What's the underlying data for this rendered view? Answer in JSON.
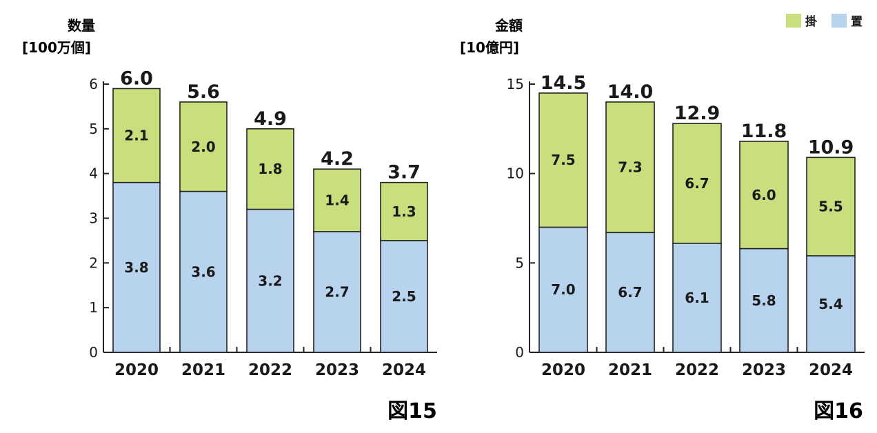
{
  "legend": {
    "items": [
      {
        "label": "掛",
        "color": "#c9df7e"
      },
      {
        "label": "置",
        "color": "#b7d3ee"
      }
    ]
  },
  "chart_data": [
    {
      "type": "bar",
      "stacked": true,
      "figure_label": "図15",
      "ylabel_line1": "数量",
      "ylabel_line2": "[100万個]",
      "categories": [
        "2020",
        "2021",
        "2022",
        "2023",
        "2024"
      ],
      "series": [
        {
          "name": "置",
          "color": "#b7d3ee",
          "values": [
            3.8,
            3.6,
            3.2,
            2.7,
            2.5
          ]
        },
        {
          "name": "掛",
          "color": "#c9df7e",
          "values": [
            2.1,
            2.0,
            1.8,
            1.4,
            1.3
          ]
        }
      ],
      "totals": [
        "6.0",
        "5.6",
        "4.9",
        "4.2",
        "3.7"
      ],
      "series_labels": {
        "置": [
          "3.8",
          "3.6",
          "3.2",
          "2.7",
          "2.5"
        ],
        "掛": [
          "2.1",
          "2.0",
          "1.8",
          "1.4",
          "1.3"
        ]
      },
      "ylim": [
        0,
        6
      ],
      "yticks": [
        0,
        1,
        2,
        3,
        4,
        5,
        6
      ]
    },
    {
      "type": "bar",
      "stacked": true,
      "figure_label": "図16",
      "ylabel_line1": "金額",
      "ylabel_line2": "[10億円]",
      "categories": [
        "2020",
        "2021",
        "2022",
        "2023",
        "2024"
      ],
      "series": [
        {
          "name": "置",
          "color": "#b7d3ee",
          "values": [
            7.0,
            6.7,
            6.1,
            5.8,
            5.4
          ]
        },
        {
          "name": "掛",
          "color": "#c9df7e",
          "values": [
            7.5,
            7.3,
            6.7,
            6.0,
            5.5
          ]
        }
      ],
      "totals": [
        "14.5",
        "14.0",
        "12.9",
        "11.8",
        "10.9"
      ],
      "series_labels": {
        "置": [
          "7.0",
          "6.7",
          "6.1",
          "5.8",
          "5.4"
        ],
        "掛": [
          "7.5",
          "7.3",
          "6.7",
          "6.0",
          "5.5"
        ]
      },
      "ylim": [
        0,
        15
      ],
      "yticks": [
        0,
        5,
        10,
        15
      ]
    }
  ]
}
